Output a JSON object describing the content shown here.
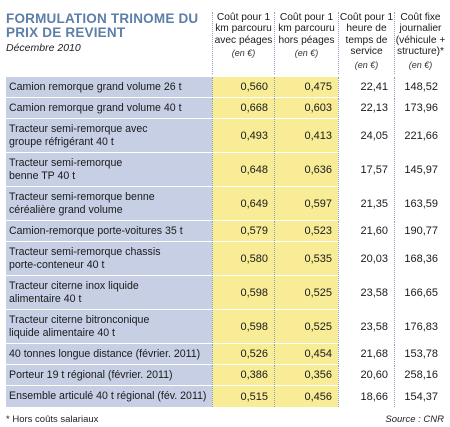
{
  "title": "FORMULATION TRINOME DU PRIX DE REVIENT",
  "subtitle": "Décembre 2010",
  "columns": [
    {
      "label": "Coût pour 1 km parcouru avec péages",
      "unit": "(en €)"
    },
    {
      "label": "Coût pour 1 km parcouru hors péages",
      "unit": "(en €)"
    },
    {
      "label": "Coût pour 1 heure de temps de service",
      "unit": "(en €)"
    },
    {
      "label": "Coût fixe journalier (véhicule + structure)*",
      "unit": "(en €)"
    }
  ],
  "rows": [
    {
      "label": "Camion remorque grand volume 26 t",
      "values": [
        "0,560",
        "0,475",
        "22,41",
        "148,52"
      ]
    },
    {
      "label": "Camion remorque grand volume 40 t",
      "values": [
        "0,668",
        "0,603",
        "22,13",
        "173,96"
      ]
    },
    {
      "label": "Tracteur semi-remorque avec groupe réfrigérant 40 t",
      "values": [
        "0,493",
        "0,413",
        "24,05",
        "221,66"
      ]
    },
    {
      "label": "Tracteur semi-remorque benne TP 40 t",
      "values": [
        "0,648",
        "0,636",
        "17,57",
        "145,97"
      ]
    },
    {
      "label": "Tracteur semi-remorque benne céréalière grand volume",
      "values": [
        "0,649",
        "0,597",
        "21,35",
        "163,59"
      ]
    },
    {
      "label": "Camion-remorque porte-voitures 35 t",
      "values": [
        "0,579",
        "0,523",
        "21,60",
        "190,77"
      ]
    },
    {
      "label": "Tracteur semi-remorque chassis porte-conteneur 40 t",
      "values": [
        "0,580",
        "0,535",
        "20,03",
        "168,36"
      ]
    },
    {
      "label": "Tracteur citerne inox liquide alimentaire 40 t",
      "values": [
        "0,598",
        "0,525",
        "23,58",
        "166,65"
      ]
    },
    {
      "label": "Tracteur citerne bitronconique liquide alimentaire 40 t",
      "values": [
        "0,598",
        "0,525",
        "23,58",
        "176,83"
      ]
    },
    {
      "label": "40 tonnes longue distance (février. 2011)",
      "values": [
        "0,526",
        "0,454",
        "21,68",
        "153,78"
      ]
    },
    {
      "label": "Porteur 19 t régional (février. 2011)",
      "values": [
        "0,386",
        "0,356",
        "20,60",
        "258,16"
      ]
    },
    {
      "label": "Ensemble articulé 40 t régional (fév. 2011)",
      "values": [
        "0,515",
        "0,456",
        "18,66",
        "154,37"
      ]
    }
  ],
  "footnote": "* Hors coûts salariaux",
  "source": "Source : CNR"
}
